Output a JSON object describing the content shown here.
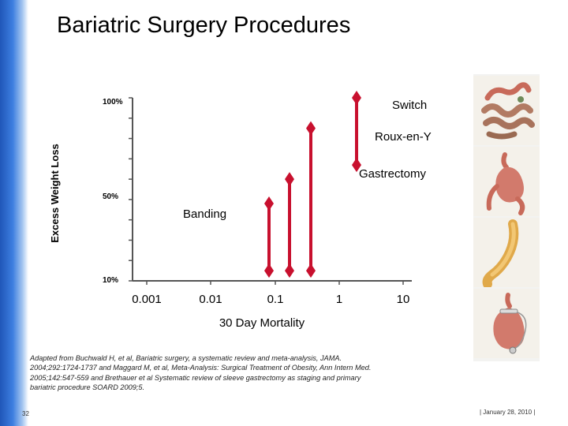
{
  "title": "Bariatric Surgery Procedures",
  "slide_number": "32",
  "date": "|  January 28, 2010  |",
  "footnote": "Adapted from Buchwald H, et al, Bariatric surgery, a systematic review and meta-analysis, JAMA. 2004;292:1724-1737 and Maggard M, et al, Meta-Analysis: Surgical Treatment of Obesity, Ann Intern Med. 2005;142:547-559 and Brethauer et al Systematic review of sleeve gastrectomy as staging and primary bariatric procedure SOARD 2009;5.",
  "images": {
    "thumb1": "intestines-anatomy-icon",
    "thumb2": "stomach-bypass-icon",
    "thumb3": "sleeve-stomach-icon",
    "thumb4": "banded-stomach-icon"
  },
  "chart_data": {
    "type": "range",
    "ylabel": "Excess Weight Loss",
    "xlabel": "30 Day Mortality",
    "x_scale": "log",
    "x_ticks": [
      "0.001",
      "0.01",
      "0.1",
      "1",
      "10"
    ],
    "y_ticks": [
      "100%",
      "50%",
      "10%"
    ],
    "color": "#c8102e",
    "procedures": [
      {
        "label": "Banding",
        "range_low": 15,
        "range_high": 48
      },
      {
        "label": "Gastrectomy",
        "range_low": 15,
        "range_high": 60
      },
      {
        "label": "Roux-en-Y",
        "range_low": 15,
        "range_high": 85
      },
      {
        "label": "Switch",
        "range_low": 67,
        "range_high": 100
      }
    ]
  }
}
